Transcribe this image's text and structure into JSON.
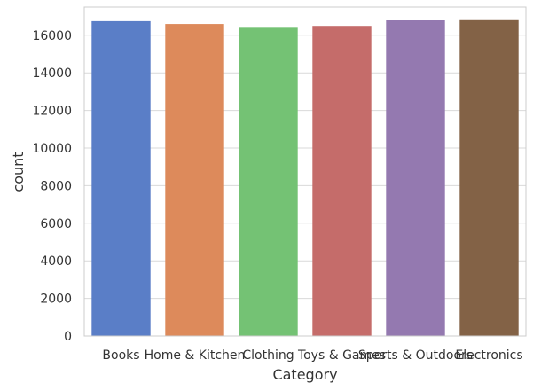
{
  "chart_data": {
    "type": "bar",
    "title": "",
    "xlabel": "Category",
    "ylabel": "count",
    "categories": [
      "Books",
      "Home & Kitchen",
      "Clothing",
      "Toys & Games",
      "Sports & Outdoors",
      "Electronics"
    ],
    "values": [
      16750,
      16600,
      16400,
      16500,
      16800,
      16850
    ],
    "ylim": [
      0,
      17500
    ],
    "yticks": [
      0,
      2000,
      4000,
      6000,
      8000,
      10000,
      12000,
      14000,
      16000
    ],
    "grid": "horizontal",
    "colors": [
      "#5A7EC7",
      "#DD8A5B",
      "#74C274",
      "#C56C6A",
      "#9479B0",
      "#836246"
    ]
  }
}
